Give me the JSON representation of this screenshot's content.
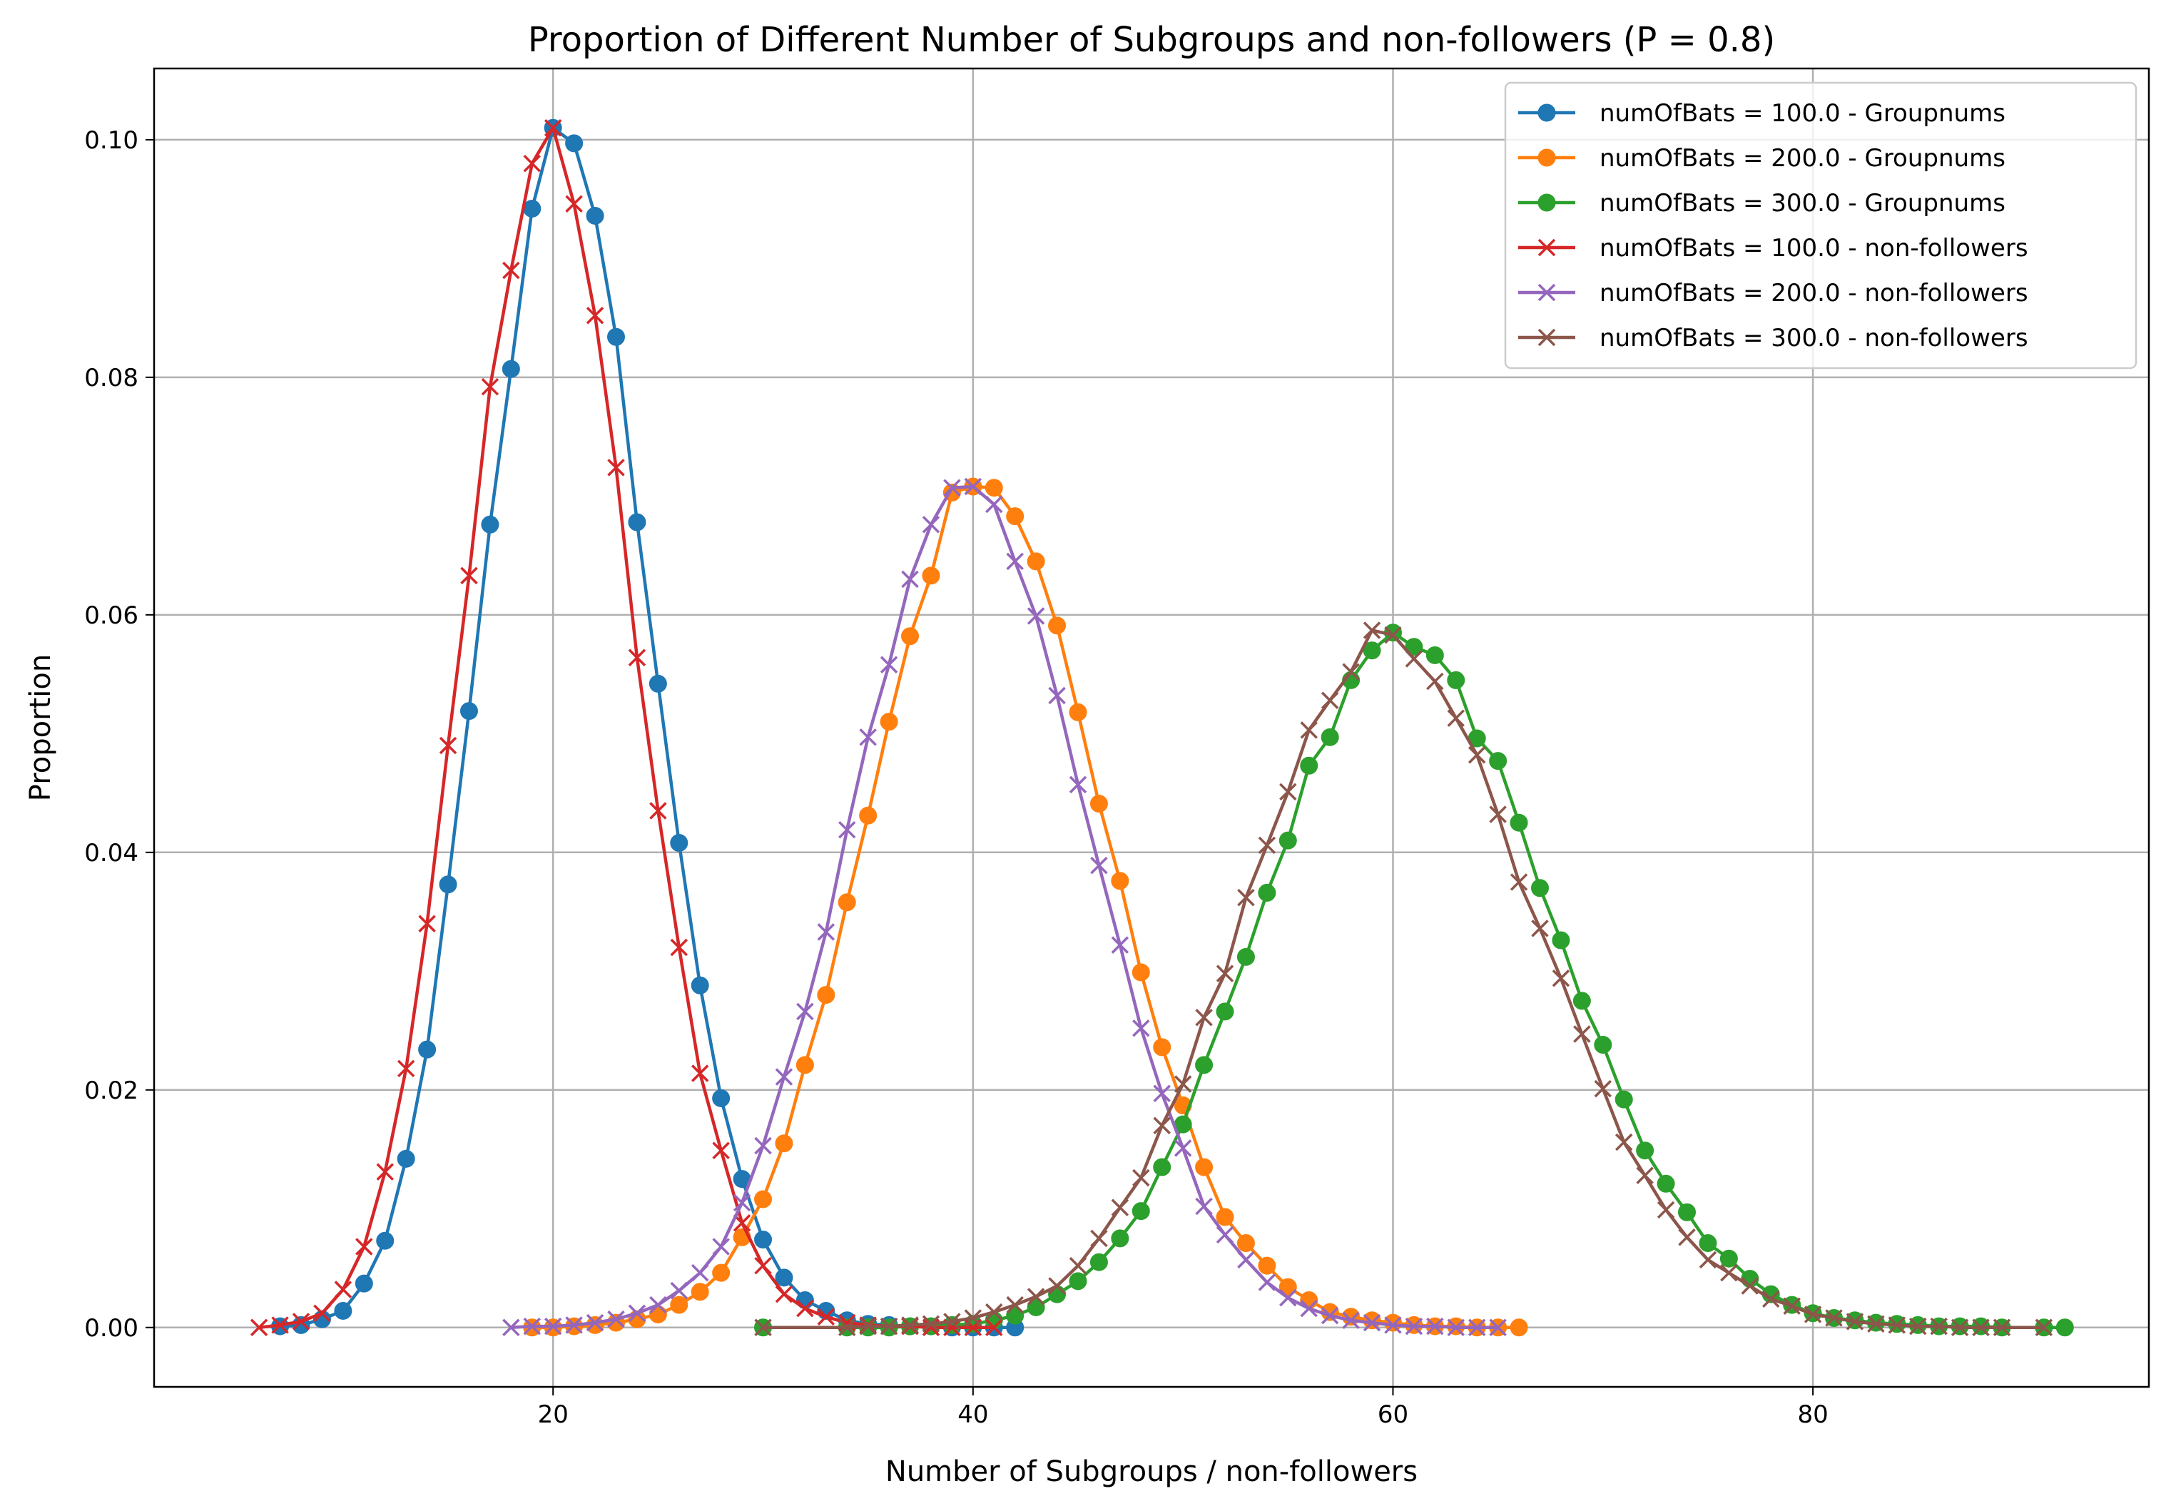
{
  "chart_data": {
    "type": "line",
    "title": "Proportion of Different Number of Subgroups and non-followers (P = 0.8)",
    "xlabel": "Number of Subgroups / non-followers",
    "ylabel": "Proportion",
    "xlim": [
      1,
      96
    ],
    "ylim": [
      -0.005,
      0.106
    ],
    "xticks": [
      20,
      40,
      60,
      80
    ],
    "xtick_labels": [
      "20",
      "40",
      "60",
      "80"
    ],
    "yticks": [
      0.0,
      0.02,
      0.04,
      0.06,
      0.08,
      0.1
    ],
    "ytick_labels": [
      "0.00",
      "0.02",
      "0.04",
      "0.06",
      "0.08",
      "0.10"
    ],
    "grid": true,
    "legend_position": "top-right",
    "series": [
      {
        "name": "numOfBats = 100.0 - Groupnums",
        "color": "#1f77b4",
        "marker": "circle",
        "x": [
          7,
          8,
          9,
          10,
          11,
          12,
          13,
          14,
          15,
          16,
          17,
          18,
          19,
          20,
          21,
          22,
          23,
          24,
          25,
          26,
          27,
          28,
          29,
          30,
          31,
          32,
          33,
          34,
          35,
          36,
          37,
          38,
          39,
          40,
          41,
          42
        ],
        "y": [
          0.0001,
          0.0002,
          0.0007,
          0.0014,
          0.0037,
          0.0073,
          0.0142,
          0.0234,
          0.0373,
          0.0519,
          0.0676,
          0.0807,
          0.0942,
          0.101,
          0.0997,
          0.0936,
          0.0834,
          0.0678,
          0.0542,
          0.0408,
          0.0288,
          0.0193,
          0.0125,
          0.0074,
          0.0042,
          0.0023,
          0.0014,
          0.0006,
          0.0003,
          0.0002,
          0.0001,
          0.0001,
          0.0,
          0.0,
          0.0,
          0.0
        ]
      },
      {
        "name": "numOfBats = 200.0 - Groupnums",
        "color": "#ff7f0e",
        "marker": "circle",
        "x": [
          19,
          20,
          21,
          22,
          23,
          24,
          25,
          26,
          27,
          28,
          29,
          30,
          31,
          32,
          33,
          34,
          35,
          36,
          37,
          38,
          39,
          40,
          41,
          42,
          43,
          44,
          45,
          46,
          47,
          48,
          49,
          50,
          51,
          52,
          53,
          54,
          55,
          56,
          57,
          58,
          59,
          60,
          61,
          62,
          63,
          64,
          65,
          66
        ],
        "y": [
          0.0,
          0.0,
          0.0001,
          0.0002,
          0.0004,
          0.0007,
          0.0011,
          0.0019,
          0.003,
          0.0046,
          0.0076,
          0.0108,
          0.0155,
          0.0221,
          0.028,
          0.0358,
          0.0431,
          0.051,
          0.0582,
          0.0633,
          0.0703,
          0.0708,
          0.0707,
          0.0683,
          0.0645,
          0.0591,
          0.0518,
          0.0441,
          0.0376,
          0.0299,
          0.0236,
          0.0187,
          0.0135,
          0.0093,
          0.0071,
          0.0052,
          0.0034,
          0.0023,
          0.0013,
          0.0009,
          0.0006,
          0.0004,
          0.0002,
          0.0001,
          0.0001,
          0.0,
          0.0,
          0.0
        ]
      },
      {
        "name": "numOfBats = 300.0 - Groupnums",
        "color": "#2ca02c",
        "marker": "circle",
        "x": [
          30,
          34,
          35,
          36,
          37,
          38,
          39,
          40,
          41,
          42,
          43,
          44,
          45,
          46,
          47,
          48,
          49,
          50,
          51,
          52,
          53,
          54,
          55,
          56,
          57,
          58,
          59,
          60,
          61,
          62,
          63,
          64,
          65,
          66,
          67,
          68,
          69,
          70,
          71,
          72,
          73,
          74,
          75,
          76,
          77,
          78,
          79,
          80,
          81,
          82,
          83,
          84,
          85,
          86,
          87,
          88,
          89,
          91,
          92
        ],
        "y": [
          0.0,
          0.0,
          0.0,
          0.0,
          0.0001,
          0.0001,
          0.0002,
          0.0003,
          0.0006,
          0.001,
          0.0017,
          0.0028,
          0.0039,
          0.0055,
          0.0075,
          0.0098,
          0.0135,
          0.0171,
          0.0221,
          0.0266,
          0.0312,
          0.0366,
          0.041,
          0.0473,
          0.0497,
          0.0545,
          0.057,
          0.0585,
          0.0573,
          0.0566,
          0.0545,
          0.0496,
          0.0477,
          0.0425,
          0.037,
          0.0326,
          0.0275,
          0.0238,
          0.0192,
          0.0149,
          0.0121,
          0.0097,
          0.0071,
          0.0058,
          0.0041,
          0.0028,
          0.0019,
          0.0012,
          0.0008,
          0.0006,
          0.0004,
          0.0003,
          0.0002,
          0.0001,
          0.0001,
          0.0001,
          0.0,
          0.0,
          0.0
        ]
      },
      {
        "name": "numOfBats = 100.0 - non-followers",
        "color": "#d62728",
        "marker": "x",
        "x": [
          6,
          7,
          8,
          9,
          10,
          11,
          12,
          13,
          14,
          15,
          16,
          17,
          18,
          19,
          20,
          21,
          22,
          23,
          24,
          25,
          26,
          27,
          28,
          29,
          30,
          31,
          32,
          33,
          34,
          35,
          36,
          37,
          38,
          39,
          40,
          41
        ],
        "y": [
          0.0,
          0.0002,
          0.0005,
          0.0012,
          0.0032,
          0.0068,
          0.0131,
          0.0218,
          0.034,
          0.049,
          0.0633,
          0.0792,
          0.089,
          0.098,
          0.101,
          0.0946,
          0.0852,
          0.0724,
          0.0564,
          0.0435,
          0.032,
          0.0214,
          0.0149,
          0.0088,
          0.0052,
          0.0028,
          0.0016,
          0.0009,
          0.0004,
          0.0002,
          0.0001,
          0.0001,
          0.0,
          0.0,
          0.0,
          0.0
        ]
      },
      {
        "name": "numOfBats = 200.0 - non-followers",
        "color": "#9467bd",
        "marker": "x",
        "x": [
          18,
          19,
          20,
          21,
          22,
          23,
          24,
          25,
          26,
          27,
          28,
          29,
          30,
          31,
          32,
          33,
          34,
          35,
          36,
          37,
          38,
          39,
          40,
          41,
          42,
          43,
          44,
          45,
          46,
          47,
          48,
          49,
          50,
          51,
          52,
          53,
          54,
          55,
          56,
          57,
          58,
          59,
          60,
          61,
          62,
          63,
          64,
          65
        ],
        "y": [
          0.0,
          0.0001,
          0.0001,
          0.0002,
          0.0004,
          0.0007,
          0.0012,
          0.0019,
          0.0031,
          0.0046,
          0.0068,
          0.0105,
          0.0153,
          0.0211,
          0.0266,
          0.0333,
          0.0419,
          0.0497,
          0.0558,
          0.063,
          0.0676,
          0.0707,
          0.0708,
          0.0693,
          0.0645,
          0.0599,
          0.0532,
          0.0457,
          0.0389,
          0.0322,
          0.0252,
          0.0197,
          0.0151,
          0.0102,
          0.0078,
          0.0057,
          0.0038,
          0.0025,
          0.0016,
          0.001,
          0.0006,
          0.0004,
          0.0002,
          0.0001,
          0.0001,
          0.0,
          0.0,
          0.0
        ]
      },
      {
        "name": "numOfBats = 300.0 - non-followers",
        "color": "#8c564b",
        "marker": "x",
        "x": [
          30,
          34,
          35,
          36,
          37,
          38,
          39,
          40,
          41,
          42,
          43,
          44,
          45,
          46,
          47,
          48,
          49,
          50,
          51,
          52,
          53,
          54,
          55,
          56,
          57,
          58,
          59,
          60,
          61,
          62,
          63,
          64,
          65,
          66,
          67,
          68,
          69,
          70,
          71,
          72,
          73,
          74,
          75,
          76,
          77,
          78,
          79,
          80,
          81,
          82,
          83,
          84,
          85,
          86,
          87,
          88,
          89,
          91
        ],
        "y": [
          0.0,
          0.0,
          0.0001,
          0.0001,
          0.0002,
          0.0003,
          0.0005,
          0.0008,
          0.0013,
          0.0019,
          0.0026,
          0.0035,
          0.0052,
          0.0075,
          0.0101,
          0.0126,
          0.017,
          0.0205,
          0.0261,
          0.0298,
          0.0362,
          0.0406,
          0.0451,
          0.0503,
          0.0528,
          0.0552,
          0.0587,
          0.0583,
          0.0563,
          0.0544,
          0.0513,
          0.0482,
          0.0432,
          0.0375,
          0.0336,
          0.0294,
          0.0247,
          0.0201,
          0.0156,
          0.0128,
          0.0099,
          0.0076,
          0.0057,
          0.0046,
          0.0035,
          0.0024,
          0.0018,
          0.0011,
          0.0008,
          0.0005,
          0.0003,
          0.0002,
          0.0001,
          0.0001,
          0.0,
          0.0,
          0.0,
          0.0
        ]
      }
    ]
  }
}
